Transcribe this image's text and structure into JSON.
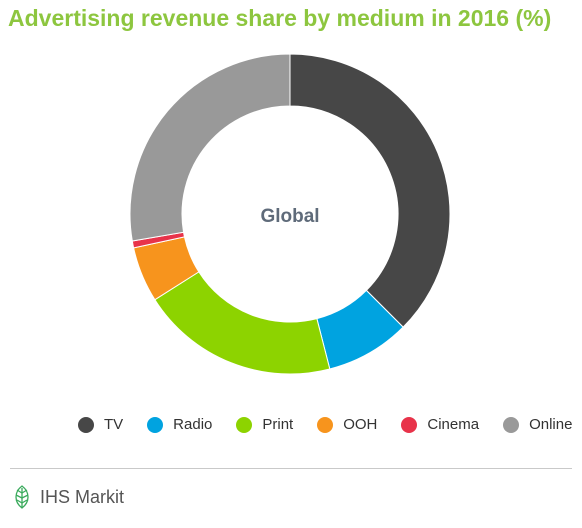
{
  "chart_data": {
    "type": "pie",
    "title": "Advertising revenue share by medium in 2016 (%)",
    "center_label": "Global",
    "categories": [
      "TV",
      "Radio",
      "Print",
      "OOH",
      "Cinema",
      "Online"
    ],
    "values": [
      37.5,
      8.5,
      20.0,
      5.6,
      0.7,
      27.7
    ],
    "colors": [
      "#474747",
      "#00a3e0",
      "#8dd300",
      "#f7941d",
      "#e8334a",
      "#999999"
    ],
    "legend_position": "bottom"
  },
  "footer": {
    "brand_icon": "ihs-markit-leaf-logo",
    "brand": "IHS Markit"
  }
}
